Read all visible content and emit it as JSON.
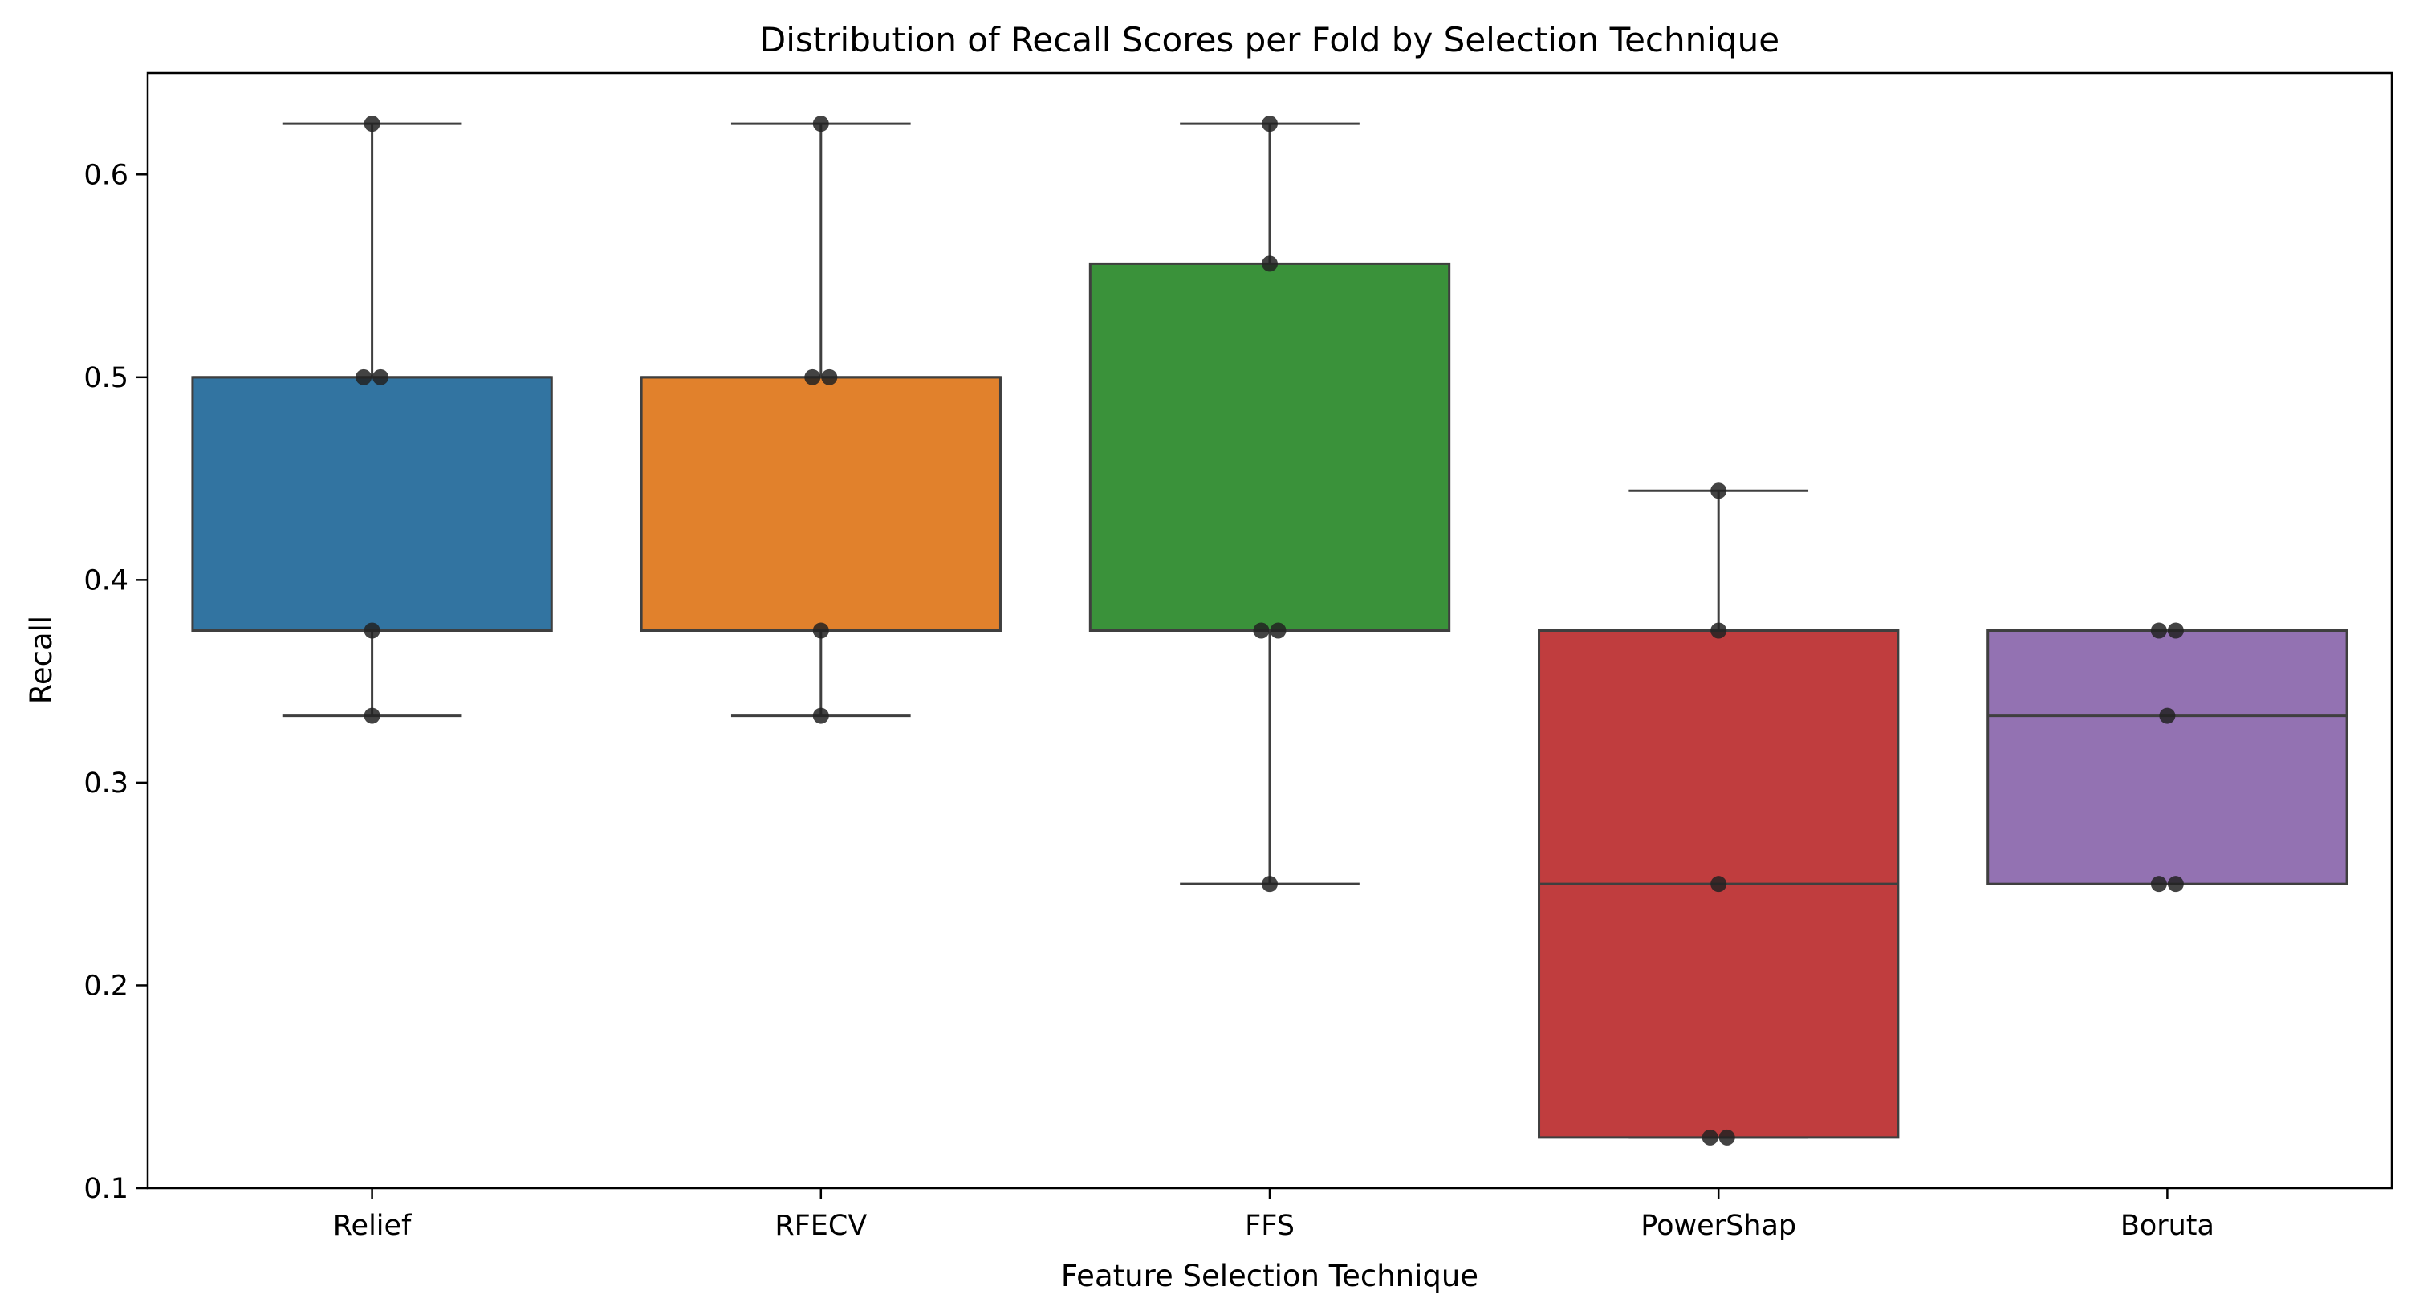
{
  "chart_data": {
    "type": "box",
    "title": "Distribution of Recall Scores per Fold by Selection Technique",
    "xlabel": "Feature Selection Technique",
    "ylabel": "Recall",
    "ylim": [
      0.1,
      0.65
    ],
    "yticks": [
      "0.1",
      "0.2",
      "0.3",
      "0.4",
      "0.5",
      "0.6"
    ],
    "grid": false,
    "legend": "none",
    "categories": [
      "Relief",
      "RFECV",
      "FFS",
      "PowerShap",
      "Boruta"
    ],
    "colors": [
      "#3274a1",
      "#e1812c",
      "#3a923a",
      "#c03d3e",
      "#9372b2"
    ],
    "boxes": [
      {
        "whisker_low": 0.333,
        "q1": 0.375,
        "median": 0.5,
        "q3": 0.5,
        "whisker_high": 0.625
      },
      {
        "whisker_low": 0.333,
        "q1": 0.375,
        "median": 0.5,
        "q3": 0.5,
        "whisker_high": 0.625
      },
      {
        "whisker_low": 0.25,
        "q1": 0.375,
        "median": 0.375,
        "q3": 0.556,
        "whisker_high": 0.625
      },
      {
        "whisker_low": 0.125,
        "q1": 0.125,
        "median": 0.25,
        "q3": 0.375,
        "whisker_high": 0.444
      },
      {
        "whisker_low": 0.25,
        "q1": 0.25,
        "median": 0.333,
        "q3": 0.375,
        "whisker_high": 0.375
      }
    ],
    "points": [
      [
        0.625,
        0.5,
        0.5,
        0.375,
        0.333
      ],
      [
        0.625,
        0.5,
        0.5,
        0.375,
        0.333
      ],
      [
        0.625,
        0.556,
        0.375,
        0.375,
        0.25
      ],
      [
        0.444,
        0.375,
        0.25,
        0.125,
        0.125
      ],
      [
        0.375,
        0.375,
        0.333,
        0.25,
        0.25
      ]
    ]
  }
}
